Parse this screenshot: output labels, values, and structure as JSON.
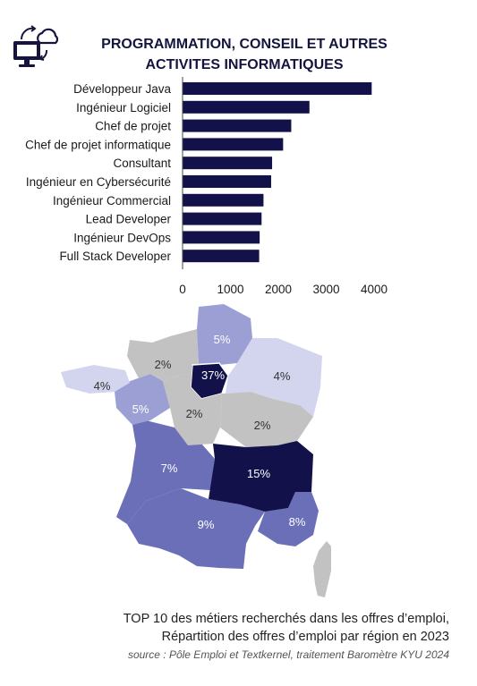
{
  "header": {
    "icon": "computer-cloud-sync-icon",
    "title_line1": "PROGRAMMATION, CONSEIL ET AUTRES",
    "title_line2": "ACTIVITES INFORMATIQUES"
  },
  "chart_data": [
    {
      "type": "bar",
      "orientation": "horizontal",
      "categories": [
        "Développeur Java",
        "Ingénieur Logiciel",
        "Chef de projet",
        "Chef de projet informatique",
        "Consultant",
        "Ingénieur en Cybersécurité",
        "Ingénieur Commercial",
        "Lead Developer",
        "Ingénieur DevOps",
        "Full Stack Developer"
      ],
      "values": [
        3950,
        2650,
        2270,
        2100,
        1870,
        1850,
        1690,
        1650,
        1610,
        1600
      ],
      "xticks": [
        0,
        1000,
        2000,
        3000,
        4000
      ],
      "xlim": [
        0,
        4000
      ],
      "grid": false,
      "bar_color": "#12114a"
    },
    {
      "type": "map",
      "regions": [
        {
          "id": "ile-de-france",
          "label": "37%",
          "value": 37,
          "color": "#12114a",
          "text_color": "#ffffff"
        },
        {
          "id": "auvergne-rhone-alpes",
          "label": "15%",
          "value": 15,
          "color": "#12114a",
          "text_color": "#ffffff"
        },
        {
          "id": "occitanie",
          "label": "9%",
          "value": 9,
          "color": "#6b6fb8",
          "text_color": "#ffffff"
        },
        {
          "id": "provence-alpes-cote-dazur",
          "label": "8%",
          "value": 8,
          "color": "#6b6fb8",
          "text_color": "#ffffff"
        },
        {
          "id": "nouvelle-aquitaine",
          "label": "7%",
          "value": 7,
          "color": "#6b6fb8",
          "text_color": "#ffffff"
        },
        {
          "id": "pays-de-la-loire",
          "label": "5%",
          "value": 5,
          "color": "#9c9fd4",
          "text_color": "#ffffff"
        },
        {
          "id": "hauts-de-france",
          "label": "5%",
          "value": 5,
          "color": "#9c9fd4",
          "text_color": "#ffffff"
        },
        {
          "id": "bretagne",
          "label": "4%",
          "value": 4,
          "color": "#d3d5ee",
          "text_color": "#333333"
        },
        {
          "id": "grand-est",
          "label": "4%",
          "value": 4,
          "color": "#d3d5ee",
          "text_color": "#333333"
        },
        {
          "id": "normandie",
          "label": "2%",
          "value": 2,
          "color": "#c2c2c2",
          "text_color": "#333333"
        },
        {
          "id": "centre-val-de-loire",
          "label": "2%",
          "value": 2,
          "color": "#c2c2c2",
          "text_color": "#333333"
        },
        {
          "id": "bourgogne-franche-comte",
          "label": "2%",
          "value": 2,
          "color": "#c2c2c2",
          "text_color": "#333333"
        },
        {
          "id": "corse",
          "label": "",
          "color": "#c2c2c2",
          "text_color": "#333333"
        }
      ]
    }
  ],
  "caption": {
    "line1": "TOP 10 des métiers recherchés dans les offres d’emploi,",
    "line2": "Répartition des offres d’emploi par région en 2023",
    "source": "source :  Pôle Emploi et Textkernel, traitement Baromètre KYU 2024"
  }
}
